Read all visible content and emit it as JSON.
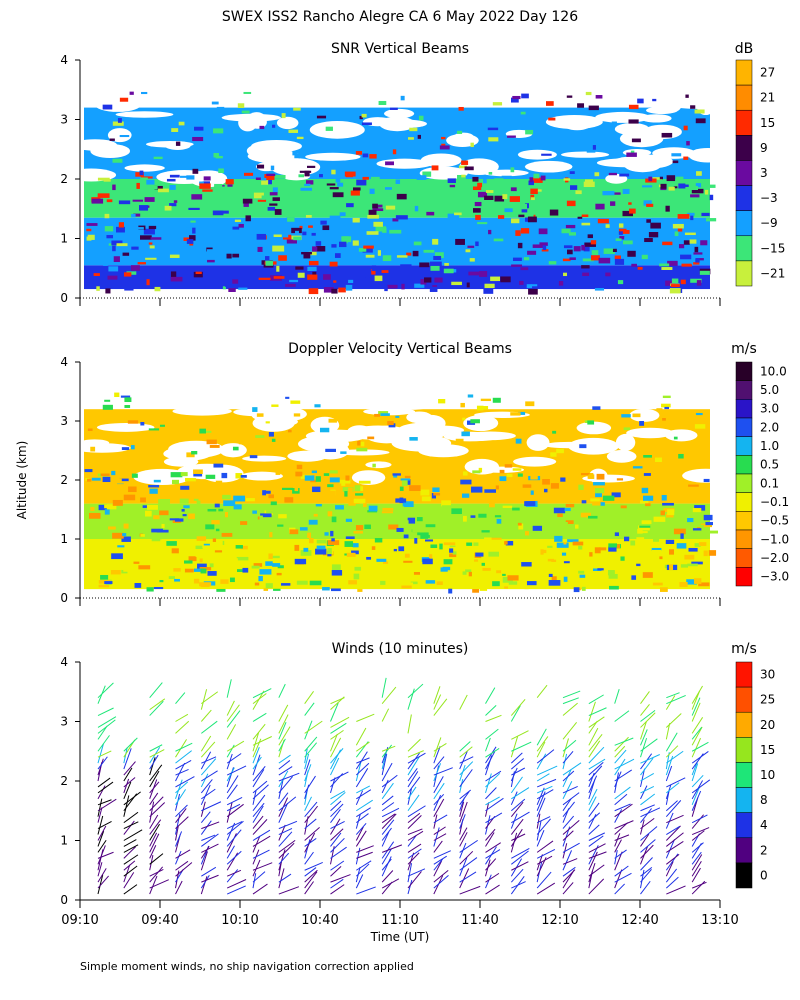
{
  "header": {
    "title": "SWEX ISS2 Rancho Alegre CA   6 May 2022 Day 126",
    "footnote": "Simple moment winds, no ship navigation correction applied",
    "y_label": "Altitude (km)",
    "x_label": "Time (UT)"
  },
  "chart_data": [
    {
      "type": "heatmap",
      "title": "SNR Vertical Beams",
      "ylim": [
        0,
        4
      ],
      "y_ticks": [
        "0",
        "1",
        "2",
        "3",
        "4"
      ],
      "colorbar": {
        "unit": "dB",
        "labels": [
          "27",
          "21",
          "15",
          "9",
          "3",
          "−3",
          "−9",
          "−15",
          "−21"
        ],
        "colors": [
          "#ffb400",
          "#ff8c00",
          "#ff2a00",
          "#3c004a",
          "#6a0aa0",
          "#1e32e6",
          "#14a0ff",
          "#3ce678",
          "#c8f03c"
        ]
      },
      "bands": [
        {
          "bottom": 0.15,
          "top": 0.55,
          "level": "-3",
          "color": "#1e32e6"
        },
        {
          "bottom": 0.55,
          "top": 1.35,
          "level": "-9",
          "color": "#14a0ff"
        },
        {
          "bottom": 1.35,
          "top": 2.0,
          "level": "-15",
          "color": "#3ce678"
        },
        {
          "bottom": 2.0,
          "top": 3.2,
          "level": "-9",
          "color": "#14a0ff"
        }
      ]
    },
    {
      "type": "heatmap",
      "title": "Doppler Velocity Vertical Beams",
      "ylim": [
        0,
        4
      ],
      "y_ticks": [
        "0",
        "1",
        "2",
        "3",
        "4"
      ],
      "colorbar": {
        "unit": "m/s",
        "labels": [
          "10.0",
          "5.0",
          "3.0",
          "2.0",
          "1.0",
          "0.5",
          "0.1",
          "−0.1",
          "−0.5",
          "−1.0",
          "−2.0",
          "−3.0"
        ],
        "colors": [
          "#280028",
          "#501070",
          "#2a14c8",
          "#1e50f0",
          "#14b4f0",
          "#28dc50",
          "#a0f028",
          "#f0f000",
          "#ffc800",
          "#ff9600",
          "#ff5a00",
          "#ff0000"
        ]
      },
      "bands": [
        {
          "bottom": 0.15,
          "top": 1.0,
          "level": "-0.1",
          "color": "#f0f000"
        },
        {
          "bottom": 1.0,
          "top": 1.6,
          "level": "0.1",
          "color": "#a0f028"
        },
        {
          "bottom": 1.6,
          "top": 3.2,
          "level": "-0.5",
          "color": "#ffc800"
        }
      ]
    },
    {
      "type": "scatter",
      "title": "Winds (10 minutes)",
      "ylim": [
        0,
        4
      ],
      "y_ticks": [
        "0",
        "1",
        "2",
        "3",
        "4"
      ],
      "x_ticks": [
        "09:10",
        "09:40",
        "10:10",
        "10:40",
        "11:10",
        "11:40",
        "12:10",
        "12:40",
        "13:10"
      ],
      "xlim": [
        "09:10",
        "13:10"
      ],
      "colorbar": {
        "unit": "m/s",
        "labels": [
          "30",
          "25",
          "20",
          "15",
          "10",
          "8",
          "4",
          "2",
          "0"
        ],
        "colors": [
          "#ff1400",
          "#ff5000",
          "#ffaa00",
          "#96e61e",
          "#1ee678",
          "#14b4f0",
          "#1e32e6",
          "#500080",
          "#000000"
        ]
      },
      "profile_times": [
        "09:10",
        "09:20",
        "09:30",
        "09:40",
        "09:50",
        "10:00",
        "10:10",
        "10:20",
        "10:30",
        "10:40",
        "10:50",
        "11:00",
        "11:10",
        "11:20",
        "11:30",
        "11:40",
        "11:50",
        "12:00",
        "12:10",
        "12:20",
        "12:30",
        "12:40",
        "12:50",
        "13:00"
      ]
    }
  ]
}
